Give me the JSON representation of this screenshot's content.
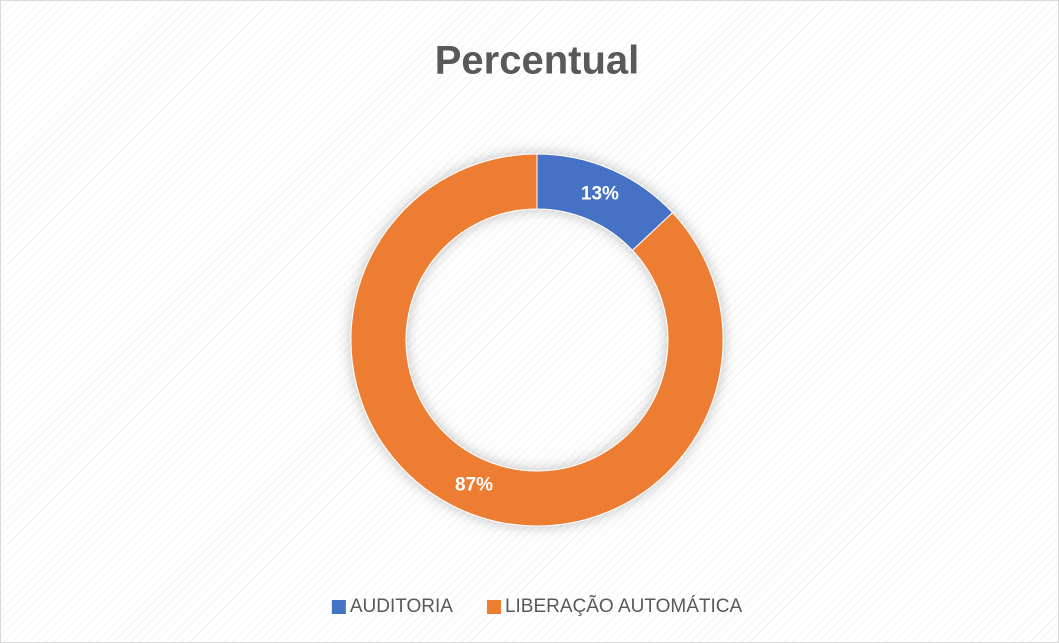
{
  "chart_data": {
    "type": "doughnut",
    "title": "Percentual",
    "categories": [
      "AUDITORIA",
      "LIBERAÇÃO AUTOMÁTICA"
    ],
    "values": [
      13,
      87
    ],
    "value_labels": [
      "13%",
      "87%"
    ],
    "colors": [
      "#4472c4",
      "#ed7d31"
    ],
    "legend": "bottom"
  }
}
